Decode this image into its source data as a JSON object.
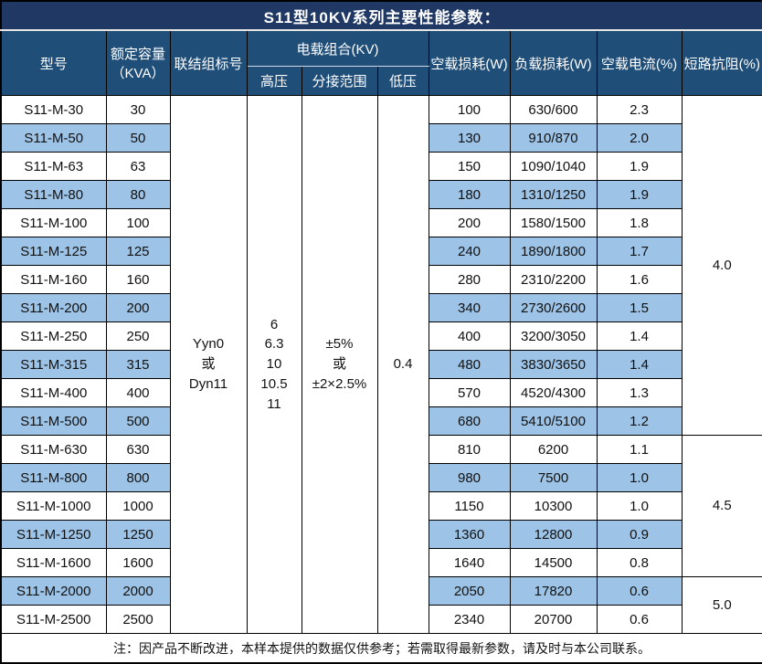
{
  "title": "S11型10KV系列主要性能参数：",
  "colors": {
    "title_bar": "#1F3864",
    "header_bg": "#1F4E79",
    "stripe_blue": "#9DC3E6",
    "border": "#000000",
    "header_text": "#FFFFFF",
    "body_text": "#111111"
  },
  "table": {
    "headers": {
      "model": "型号",
      "capacity": "额定容量\n（KVA）",
      "connection": "联结组标号",
      "load_combo": "电载组合(KV)",
      "high_voltage": "高压",
      "tap_range": "分接范围",
      "low_voltage": "低压",
      "no_load_loss": "空载损耗(W)",
      "load_loss": "负载损耗(W)",
      "no_load_current": "空载电流(%)",
      "impedance": "短路抗阻(%)"
    },
    "merged": {
      "connection": "Yyn0\n或\nDyn11",
      "high_voltage": "6\n6.3\n10\n10.5\n11",
      "tap_range": "±5%\n或\n±2×2.5%",
      "low_voltage": "0.4"
    },
    "rows": [
      {
        "model": "S11-M-30",
        "kva": "30",
        "no_load_loss": "100",
        "load_loss": "630/600",
        "no_load_current": "2.3"
      },
      {
        "model": "S11-M-50",
        "kva": "50",
        "no_load_loss": "130",
        "load_loss": "910/870",
        "no_load_current": "2.0"
      },
      {
        "model": "S11-M-63",
        "kva": "63",
        "no_load_loss": "150",
        "load_loss": "1090/1040",
        "no_load_current": "1.9"
      },
      {
        "model": "S11-M-80",
        "kva": "80",
        "no_load_loss": "180",
        "load_loss": "1310/1250",
        "no_load_current": "1.9"
      },
      {
        "model": "S11-M-100",
        "kva": "100",
        "no_load_loss": "200",
        "load_loss": "1580/1500",
        "no_load_current": "1.8"
      },
      {
        "model": "S11-M-125",
        "kva": "125",
        "no_load_loss": "240",
        "load_loss": "1890/1800",
        "no_load_current": "1.7"
      },
      {
        "model": "S11-M-160",
        "kva": "160",
        "no_load_loss": "280",
        "load_loss": "2310/2200",
        "no_load_current": "1.6"
      },
      {
        "model": "S11-M-200",
        "kva": "200",
        "no_load_loss": "340",
        "load_loss": "2730/2600",
        "no_load_current": "1.5"
      },
      {
        "model": "S11-M-250",
        "kva": "250",
        "no_load_loss": "400",
        "load_loss": "3200/3050",
        "no_load_current": "1.4"
      },
      {
        "model": "S11-M-315",
        "kva": "315",
        "no_load_loss": "480",
        "load_loss": "3830/3650",
        "no_load_current": "1.4"
      },
      {
        "model": "S11-M-400",
        "kva": "400",
        "no_load_loss": "570",
        "load_loss": "4520/4300",
        "no_load_current": "1.3"
      },
      {
        "model": "S11-M-500",
        "kva": "500",
        "no_load_loss": "680",
        "load_loss": "5410/5100",
        "no_load_current": "1.2"
      },
      {
        "model": "S11-M-630",
        "kva": "630",
        "no_load_loss": "810",
        "load_loss": "6200",
        "no_load_current": "1.1"
      },
      {
        "model": "S11-M-800",
        "kva": "800",
        "no_load_loss": "980",
        "load_loss": "7500",
        "no_load_current": "1.0"
      },
      {
        "model": "S11-M-1000",
        "kva": "1000",
        "no_load_loss": "1150",
        "load_loss": "10300",
        "no_load_current": "1.0"
      },
      {
        "model": "S11-M-1250",
        "kva": "1250",
        "no_load_loss": "1360",
        "load_loss": "12800",
        "no_load_current": "0.9"
      },
      {
        "model": "S11-M-1600",
        "kva": "1600",
        "no_load_loss": "1640",
        "load_loss": "14500",
        "no_load_current": "0.8"
      },
      {
        "model": "S11-M-2000",
        "kva": "2000",
        "no_load_loss": "2050",
        "load_loss": "17820",
        "no_load_current": "0.6"
      },
      {
        "model": "S11-M-2500",
        "kva": "2500",
        "no_load_loss": "2340",
        "load_loss": "20700",
        "no_load_current": "0.6"
      }
    ],
    "impedance_groups": [
      {
        "value": "4.0",
        "start": 0,
        "span": 12
      },
      {
        "value": "4.5",
        "start": 12,
        "span": 5
      },
      {
        "value": "5.0",
        "start": 17,
        "span": 2
      }
    ]
  },
  "footer_note": "注：因产品不断改进，本样本提供的数据仅供参考；若需取得最新参数，请及时与本公司联系。"
}
